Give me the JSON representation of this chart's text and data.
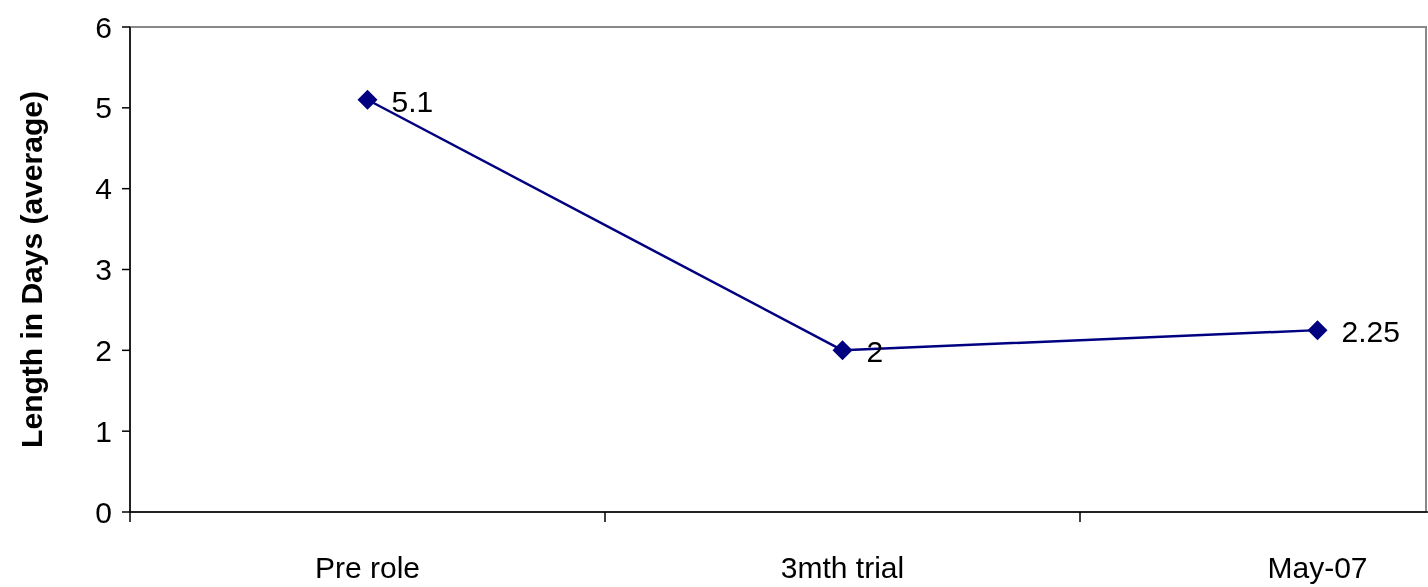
{
  "chart_data": {
    "type": "line",
    "ylabel": "Length in Days (average)",
    "categories": [
      "Pre role",
      "3mth trial",
      "May-07"
    ],
    "series": [
      {
        "color": "#000080",
        "values": [
          5.1,
          2,
          2.25
        ]
      }
    ],
    "ylim": [
      0,
      6
    ],
    "yticks": [
      0,
      1,
      2,
      3,
      4,
      5,
      6
    ],
    "grid": false,
    "marker": "diamond",
    "line_style": "solid",
    "data_labels": true
  }
}
